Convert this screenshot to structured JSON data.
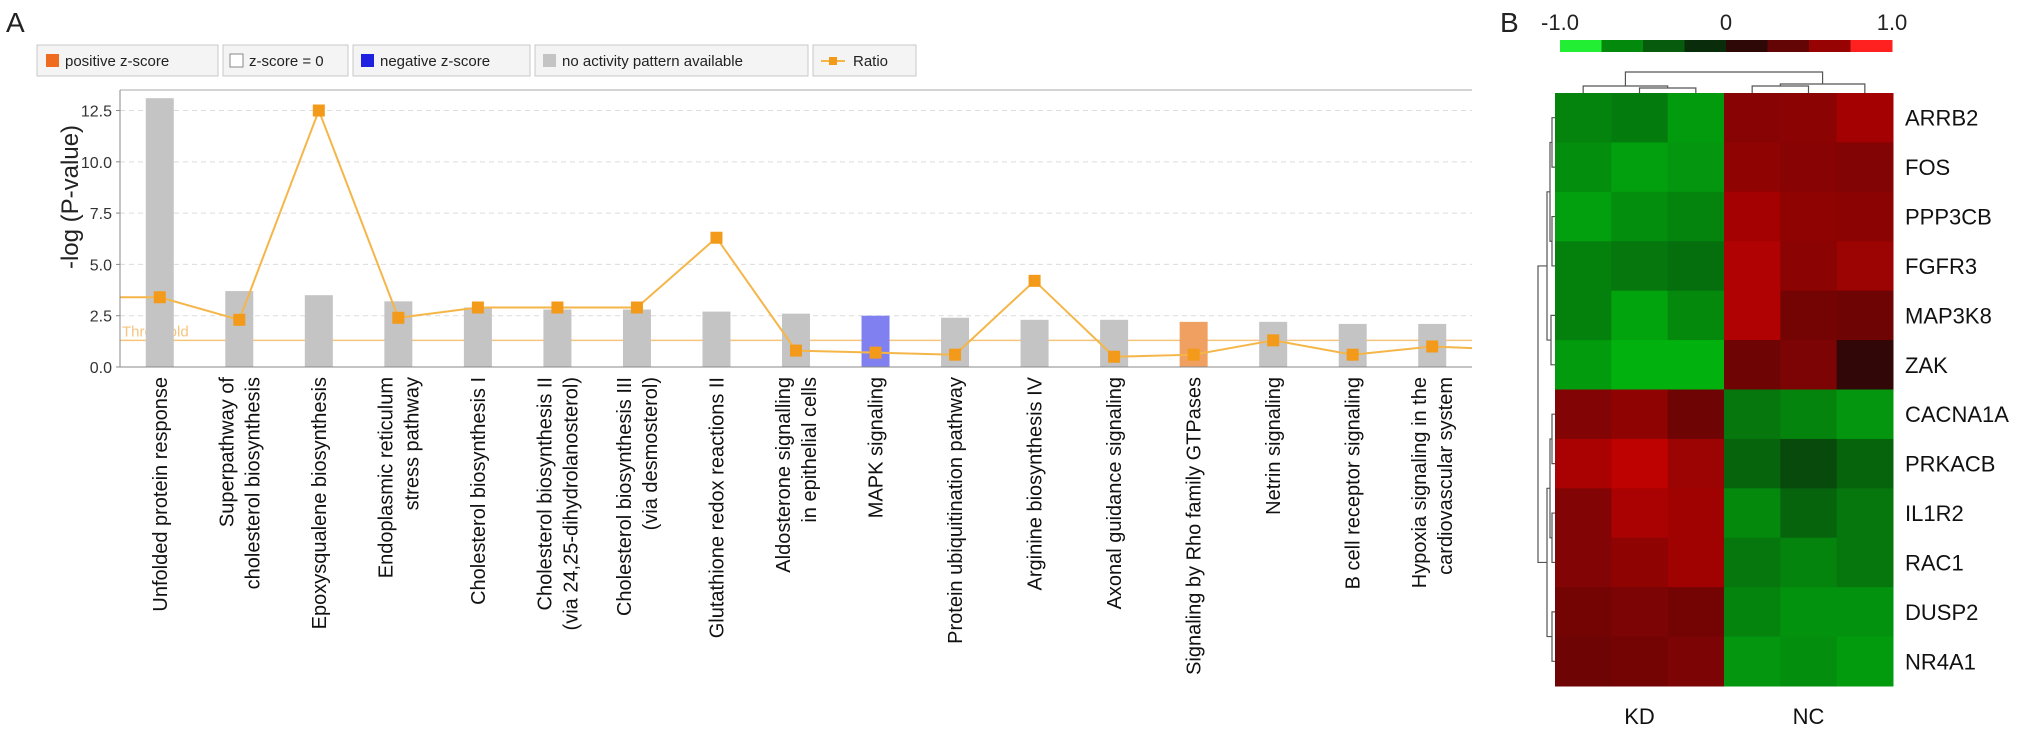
{
  "panel_labels": {
    "a": "A",
    "b": "B"
  },
  "colors": {
    "bar_default": "#c4c4c4",
    "bar_negative": "#8080f0",
    "bar_positive": "#f0a060",
    "ratio_line": "#f5b649",
    "ratio_marker": "#f39a1a",
    "threshold": "#f7c47e",
    "legend_positive": "#ee6b1f",
    "legend_negative": "#2020e0",
    "legend_none": "#c4c4c4"
  },
  "legend": {
    "positive": "positive z-score",
    "zero": "z-score = 0",
    "negative": "negative z-score",
    "none": "no activity pattern available",
    "ratio": "Ratio"
  },
  "chart_data": [
    {
      "type": "bar",
      "ylabel": "-log (P-value)",
      "ylim": [
        0,
        13.5
      ],
      "yticks": [
        "0.0",
        "2.5",
        "5.0",
        "7.5",
        "10.0",
        "12.5"
      ],
      "threshold": {
        "label": "Threshold",
        "value": 1.3
      },
      "grid": true,
      "legend_position": "top-left",
      "categories": [
        [
          "Unfolded protein response"
        ],
        [
          "Superpathway of",
          "cholesterol biosynthesis"
        ],
        [
          "Epoxysqualene biosynthesis"
        ],
        [
          "Endoplasmic reticulum",
          "stress pathway"
        ],
        [
          "Cholesterol biosynthesis I"
        ],
        [
          "Cholesterol biosynthesis II",
          "(via 24,25-dihydrolanosterol)"
        ],
        [
          "Cholesterol biosynthesis III",
          "(via desmosterol)"
        ],
        [
          "Glutathione redox reactions II"
        ],
        [
          "Aldosterone signalling",
          "in epithelial cells"
        ],
        [
          "MAPK signaling"
        ],
        [
          "Protein ubiquitination pathway"
        ],
        [
          "Arginine biosynthesis IV"
        ],
        [
          "Axonal guidance signaling"
        ],
        [
          "Signaling by Rho family GTPases"
        ],
        [
          "Netrin signaling"
        ],
        [
          "B cell receptor signaling"
        ],
        [
          "Hypoxia signaling in the",
          "cardiovascular system"
        ]
      ],
      "values": [
        13.1,
        3.7,
        3.5,
        3.2,
        2.9,
        2.8,
        2.8,
        2.7,
        2.6,
        2.5,
        2.4,
        2.3,
        2.3,
        2.2,
        2.2,
        2.1,
        2.1
      ],
      "bar_status": [
        "none",
        "none",
        "none",
        "none",
        "none",
        "none",
        "none",
        "none",
        "none",
        "negative",
        "none",
        "none",
        "none",
        "positive",
        "none",
        "none",
        "none"
      ],
      "series": [
        {
          "name": "Ratio",
          "values": [
            3.4,
            2.3,
            12.5,
            2.4,
            2.9,
            2.9,
            2.9,
            6.3,
            0.8,
            0.7,
            0.6,
            4.2,
            0.5,
            0.6,
            1.3,
            0.6,
            1.0
          ]
        }
      ]
    },
    {
      "type": "heatmap",
      "color_scale": {
        "ticks": [
          "-1.0",
          "0",
          "1.0"
        ],
        "min": -1,
        "max": 1
      },
      "columns": [
        "KD",
        "KD",
        "KD",
        "NC",
        "NC",
        "NC"
      ],
      "column_groups": [
        "KD",
        "NC"
      ],
      "rows": [
        "ARRB2",
        "FOS",
        "PPP3CB",
        "FGFR3",
        "MAP3K8",
        "ZAK",
        "CACNA1A",
        "PRKACB",
        "IL1R2",
        "RAC1",
        "DUSP2",
        "NR4A1"
      ],
      "values": [
        [
          -0.62,
          -0.58,
          -0.75,
          0.58,
          0.6,
          0.72
        ],
        [
          -0.68,
          -0.78,
          -0.72,
          0.62,
          0.58,
          0.55
        ],
        [
          -0.78,
          -0.68,
          -0.62,
          0.72,
          0.62,
          0.6
        ],
        [
          -0.6,
          -0.55,
          -0.5,
          0.78,
          0.6,
          0.68
        ],
        [
          -0.6,
          -0.8,
          -0.65,
          0.78,
          0.48,
          0.45
        ],
        [
          -0.75,
          -0.88,
          -0.88,
          0.45,
          0.52,
          0.15
        ],
        [
          0.55,
          0.62,
          0.45,
          -0.55,
          -0.62,
          -0.72
        ],
        [
          0.75,
          0.85,
          0.68,
          -0.45,
          -0.3,
          -0.45
        ],
        [
          0.55,
          0.75,
          0.7,
          -0.65,
          -0.45,
          -0.55
        ],
        [
          0.55,
          0.62,
          0.7,
          -0.55,
          -0.62,
          -0.55
        ],
        [
          0.48,
          0.52,
          0.48,
          -0.62,
          -0.7,
          -0.7
        ],
        [
          0.45,
          0.48,
          0.52,
          -0.72,
          -0.68,
          -0.75
        ]
      ]
    }
  ]
}
